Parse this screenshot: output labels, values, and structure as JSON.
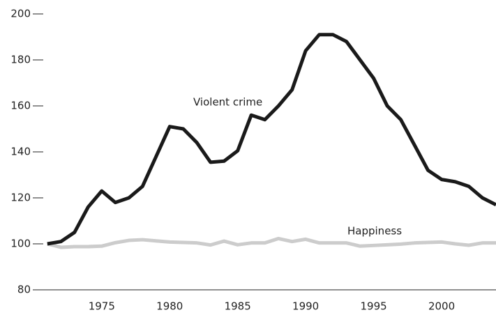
{
  "chart_data": {
    "type": "line",
    "x": [
      1971,
      1972,
      1973,
      1974,
      1975,
      1976,
      1977,
      1978,
      1979,
      1980,
      1981,
      1982,
      1983,
      1984,
      1985,
      1986,
      1987,
      1988,
      1989,
      1990,
      1991,
      1992,
      1993,
      1994,
      1995,
      1996,
      1997,
      1998,
      1999,
      2000,
      2001,
      2002,
      2003,
      2004
    ],
    "series": [
      {
        "name": "Violent crime",
        "color": "#1a1a1a",
        "values": [
          100,
          101,
          105,
          116,
          123,
          118,
          120,
          125,
          138,
          151,
          150,
          144,
          135.5,
          136,
          140.5,
          156,
          154,
          160,
          167,
          184,
          191,
          191,
          188,
          180,
          172,
          160,
          154,
          143,
          132,
          128,
          127,
          125,
          120,
          117
        ]
      },
      {
        "name": "Happiness",
        "color": "#cccccc",
        "values": [
          100,
          98.5,
          98.8,
          98.8,
          99,
          100.5,
          101.5,
          101.8,
          101.3,
          100.8,
          100.6,
          100.4,
          99.5,
          101.2,
          99.6,
          100.4,
          100.4,
          102.3,
          101,
          102,
          100.4,
          100.4,
          100.4,
          99,
          99.3,
          99.6,
          99.9,
          100.4,
          100.6,
          100.8,
          100,
          99.4,
          100.4,
          100.4
        ]
      }
    ],
    "xlim": [
      1970.7,
      2004
    ],
    "xticks": [
      1975,
      1980,
      1985,
      1990,
      1995,
      2000
    ],
    "ylim": [
      80,
      200
    ],
    "yticks": [
      80,
      100,
      120,
      140,
      160,
      180,
      200
    ],
    "grid": false
  }
}
